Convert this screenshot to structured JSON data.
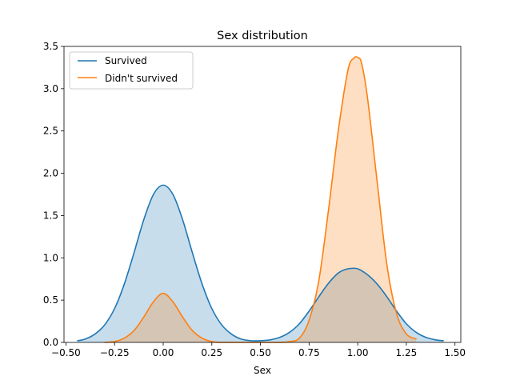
{
  "chart_data": {
    "type": "area",
    "title": "Sex distribution",
    "xlabel": "Sex",
    "ylabel": "",
    "xlim": [
      -0.51,
      1.53
    ],
    "ylim": [
      0,
      3.5
    ],
    "xticks": [
      -0.5,
      -0.25,
      0.0,
      0.25,
      0.5,
      0.75,
      1.0,
      1.25,
      1.5
    ],
    "xtick_labels": [
      "−0.50",
      "−0.25",
      "0.00",
      "0.25",
      "0.50",
      "0.75",
      "1.00",
      "1.25",
      "1.50"
    ],
    "yticks": [
      0.0,
      0.5,
      1.0,
      1.5,
      2.0,
      2.5,
      3.0,
      3.5
    ],
    "ytick_labels": [
      "0.0",
      "0.5",
      "1.0",
      "1.5",
      "2.0",
      "2.5",
      "3.0",
      "3.5"
    ],
    "grid": false,
    "legend_position": "upper-left",
    "series": [
      {
        "name": "Survived",
        "color": "#1f77b4",
        "fill_color": "#1f77b4",
        "x": [
          -0.44,
          -0.4,
          -0.35,
          -0.3,
          -0.25,
          -0.2,
          -0.15,
          -0.1,
          -0.05,
          0.0,
          0.05,
          0.1,
          0.15,
          0.2,
          0.25,
          0.3,
          0.35,
          0.4,
          0.45,
          0.5,
          0.55,
          0.6,
          0.65,
          0.7,
          0.75,
          0.8,
          0.85,
          0.9,
          0.95,
          1.0,
          1.05,
          1.1,
          1.15,
          1.2,
          1.25,
          1.3,
          1.35,
          1.4,
          1.44
        ],
        "y": [
          0.02,
          0.04,
          0.1,
          0.21,
          0.4,
          0.69,
          1.06,
          1.45,
          1.75,
          1.86,
          1.75,
          1.45,
          1.06,
          0.69,
          0.4,
          0.21,
          0.1,
          0.04,
          0.02,
          0.02,
          0.03,
          0.06,
          0.12,
          0.22,
          0.37,
          0.54,
          0.7,
          0.82,
          0.87,
          0.87,
          0.8,
          0.69,
          0.54,
          0.37,
          0.22,
          0.12,
          0.06,
          0.03,
          0.02
        ]
      },
      {
        "name": "Didn't survived",
        "color": "#ff7f0e",
        "fill_color": "#ff7f0e",
        "x": [
          -0.3,
          -0.25,
          -0.2,
          -0.15,
          -0.1,
          -0.05,
          0.0,
          0.05,
          0.1,
          0.15,
          0.2,
          0.25,
          0.3,
          0.35,
          0.4,
          0.5,
          0.6,
          0.65,
          0.7,
          0.75,
          0.8,
          0.85,
          0.9,
          0.95,
          0.98,
          1.0,
          1.02,
          1.05,
          1.1,
          1.15,
          1.2,
          1.25,
          1.3
        ],
        "y": [
          0.0,
          0.01,
          0.05,
          0.14,
          0.3,
          0.48,
          0.58,
          0.48,
          0.3,
          0.14,
          0.05,
          0.01,
          0.0,
          0.0,
          0.0,
          0.0,
          0.0,
          0.01,
          0.05,
          0.26,
          0.73,
          1.57,
          2.5,
          3.22,
          3.36,
          3.37,
          3.3,
          2.9,
          1.9,
          0.92,
          0.34,
          0.1,
          0.04
        ]
      }
    ]
  }
}
